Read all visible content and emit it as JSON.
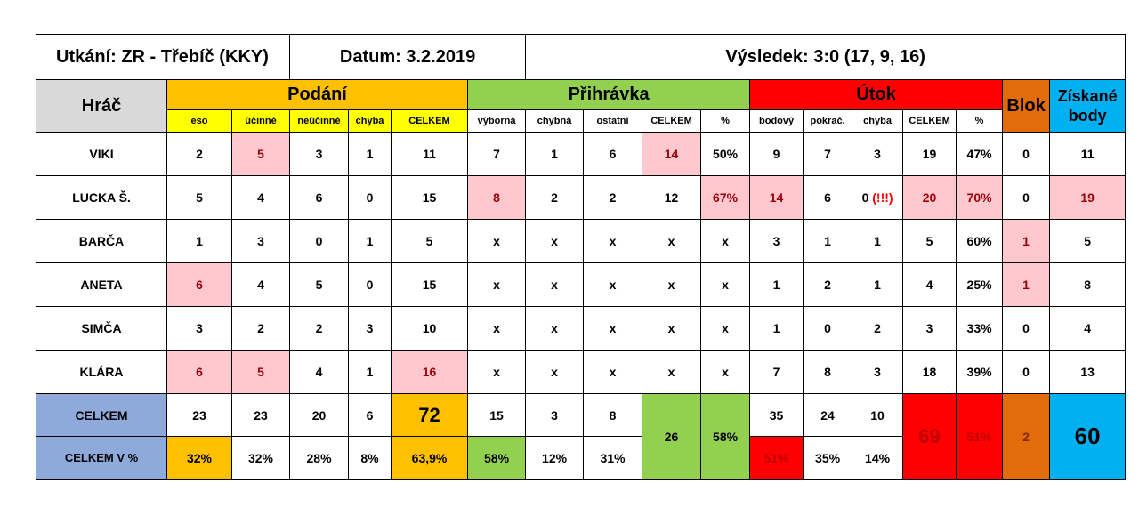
{
  "header": {
    "match": "Utkání: ZR - Třebíč (KKY)",
    "date": "Datum: 3.2.2019",
    "result": "Výsledek: 3:0 (17, 9, 16)"
  },
  "groups": {
    "player": "Hráč",
    "serve": "Podání",
    "pass": "Přihrávka",
    "attack": "Útok",
    "block": "Blok",
    "points": "Získané body"
  },
  "subheaders": {
    "serve": [
      "eso",
      "účinné",
      "neúčinné",
      "chyba",
      "CELKEM"
    ],
    "pass": [
      "výborná",
      "chybná",
      "ostatní",
      "CELKEM",
      "%"
    ],
    "attack": [
      "bodový",
      "pokrač.",
      "chyba",
      "CELKEM",
      "%"
    ]
  },
  "players": [
    {
      "name": "VIKI",
      "serve": [
        "2",
        "5",
        "3",
        "1",
        "11"
      ],
      "pass": [
        "7",
        "1",
        "6",
        "14",
        "50%"
      ],
      "attack": [
        "9",
        "7",
        "3",
        "19",
        "47%"
      ],
      "block": "0",
      "points": "11"
    },
    {
      "name": "LUCKA Š.",
      "serve": [
        "5",
        "4",
        "6",
        "0",
        "15"
      ],
      "pass": [
        "8",
        "2",
        "2",
        "12",
        "67%"
      ],
      "attack": [
        "14",
        "6",
        "0",
        "20",
        "70%"
      ],
      "attack_error_note": "(!!!)",
      "block": "0",
      "points": "19"
    },
    {
      "name": "BARČA",
      "serve": [
        "1",
        "3",
        "0",
        "1",
        "5"
      ],
      "pass": [
        "x",
        "x",
        "x",
        "x",
        "x"
      ],
      "attack": [
        "3",
        "1",
        "1",
        "5",
        "60%"
      ],
      "block": "1",
      "points": "5"
    },
    {
      "name": "ANETA",
      "serve": [
        "6",
        "4",
        "5",
        "0",
        "15"
      ],
      "pass": [
        "x",
        "x",
        "x",
        "x",
        "x"
      ],
      "attack": [
        "1",
        "2",
        "1",
        "4",
        "25%"
      ],
      "block": "1",
      "points": "8"
    },
    {
      "name": "SIMČA",
      "serve": [
        "3",
        "2",
        "2",
        "3",
        "10"
      ],
      "pass": [
        "x",
        "x",
        "x",
        "x",
        "x"
      ],
      "attack": [
        "1",
        "0",
        "2",
        "3",
        "33%"
      ],
      "block": "0",
      "points": "4"
    },
    {
      "name": "KLÁRA",
      "serve": [
        "6",
        "5",
        "4",
        "1",
        "16"
      ],
      "pass": [
        "x",
        "x",
        "x",
        "x",
        "x"
      ],
      "attack": [
        "7",
        "8",
        "3",
        "18",
        "39%"
      ],
      "block": "0",
      "points": "13"
    }
  ],
  "totals": {
    "label": "CELKEM",
    "serve": [
      "23",
      "23",
      "20",
      "6",
      "72"
    ],
    "pass": [
      "15",
      "3",
      "8",
      "26",
      "58%"
    ],
    "attack": [
      "35",
      "24",
      "10",
      "69",
      "51%"
    ],
    "block": "2",
    "points": "60"
  },
  "totals_pct": {
    "label": "CELKEM V %",
    "serve": [
      "32%",
      "32%",
      "28%",
      "8%",
      "63,9%"
    ],
    "pass": [
      "58%",
      "12%",
      "31%"
    ],
    "attack": [
      "51%",
      "35%",
      "14%"
    ]
  },
  "colors": {
    "serve": "#ffc000",
    "pass": "#92d050",
    "attack": "#ff0000",
    "block": "#e26b0a",
    "points": "#00b0f0",
    "subheader": "#ffff00",
    "player_header": "#d9d9d9",
    "totals_label": "#8eaadb",
    "highlight": "#ffc7ce"
  }
}
